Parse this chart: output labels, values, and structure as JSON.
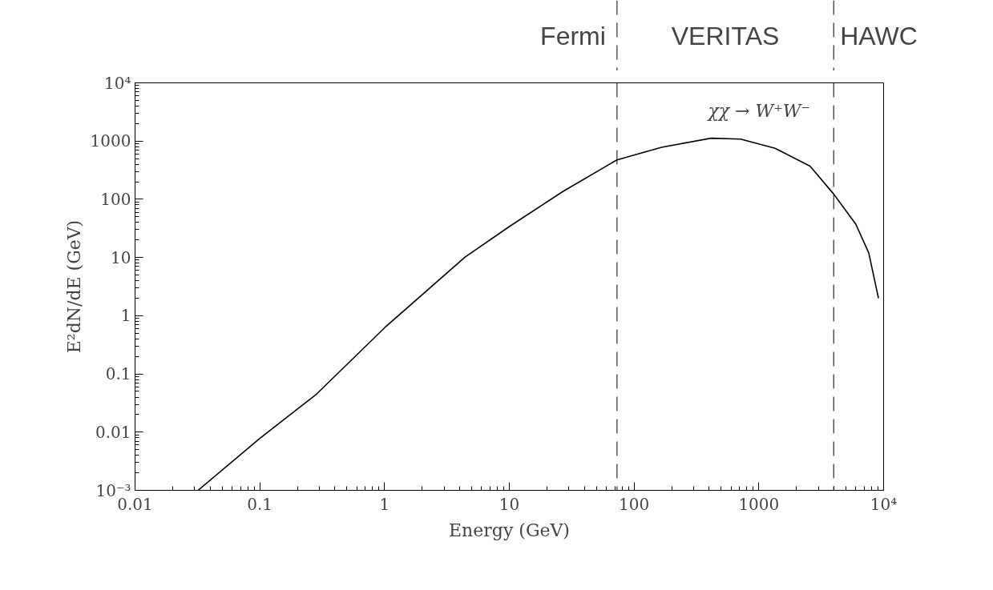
{
  "chart_data": {
    "type": "line",
    "xlabel": "Energy (GeV)",
    "ylabel": "E²dN/dE (GeV)",
    "log": "xy",
    "xlim": [
      0.01,
      10000
    ],
    "ylim": [
      0.001,
      10000
    ],
    "xticks": [
      0.01,
      0.1,
      1,
      10,
      100,
      1000,
      {
        "value": 10000,
        "label": "10⁴"
      }
    ],
    "yticks": [
      {
        "value": 0.001,
        "label": "10⁻³"
      },
      0.01,
      0.1,
      1,
      10,
      100,
      1000,
      {
        "value": 10000,
        "label": "10⁴"
      }
    ],
    "grid": false,
    "marker": "none",
    "line_style": "solid",
    "series": [
      {
        "color": "#000000",
        "x": [
          0.032,
          0.1,
          0.285,
          1,
          4.4,
          10,
          27,
          73,
          166,
          414,
          714,
          1350,
          2570,
          3980,
          6000,
          7600,
          9100
        ],
        "values": [
          0.001,
          0.0078,
          0.045,
          0.62,
          10.1,
          34,
          137,
          476,
          780,
          1120,
          1080,
          750,
          372,
          123,
          37,
          12,
          2.0
        ]
      }
    ],
    "ref_lines": [
      {
        "axis": "x",
        "value": 73,
        "line_style": "dashed",
        "color": "#000000"
      },
      {
        "axis": "x",
        "value": 3980,
        "line_style": "dashed",
        "color": "#000000"
      }
    ],
    "annotations": [
      "Fermi",
      "VERITAS",
      "HAWC",
      "χχ → W⁺W⁻"
    ]
  }
}
